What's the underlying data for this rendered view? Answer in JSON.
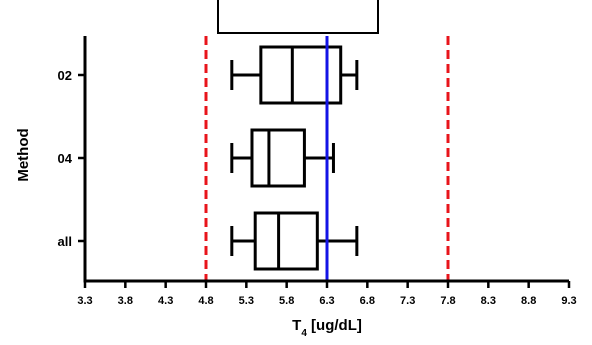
{
  "chart_data": {
    "type": "boxplot",
    "orientation": "horizontal",
    "title": "",
    "xlabel": {
      "base": "T",
      "subscript": "4",
      "rest": " [ug/dL]"
    },
    "ylabel": "Method",
    "xlim": [
      3.3,
      9.3
    ],
    "xticks": [
      "3.3",
      "3.8",
      "4.3",
      "4.8",
      "5.3",
      "5.8",
      "6.3",
      "6.8",
      "7.3",
      "7.8",
      "8.3",
      "8.8",
      "9.3"
    ],
    "categories": [
      "02",
      "04",
      "all"
    ],
    "boxes": [
      {
        "label": "02",
        "min": 5.12,
        "q1": 5.48,
        "median": 5.87,
        "q3": 6.47,
        "max": 6.67
      },
      {
        "label": "04",
        "min": 5.12,
        "q1": 5.37,
        "median": 5.58,
        "q3": 6.02,
        "max": 6.38
      },
      {
        "label": "all",
        "min": 5.12,
        "q1": 5.41,
        "median": 5.7,
        "q3": 6.18,
        "max": 6.67
      }
    ],
    "reference_lines": [
      {
        "value": 4.8,
        "color": "#e8141b",
        "style": "dashed"
      },
      {
        "value": 6.3,
        "color": "#1414e6",
        "style": "solid"
      },
      {
        "value": 7.8,
        "color": "#e8141b",
        "style": "dashed"
      }
    ],
    "grid": false,
    "legend": "none"
  }
}
